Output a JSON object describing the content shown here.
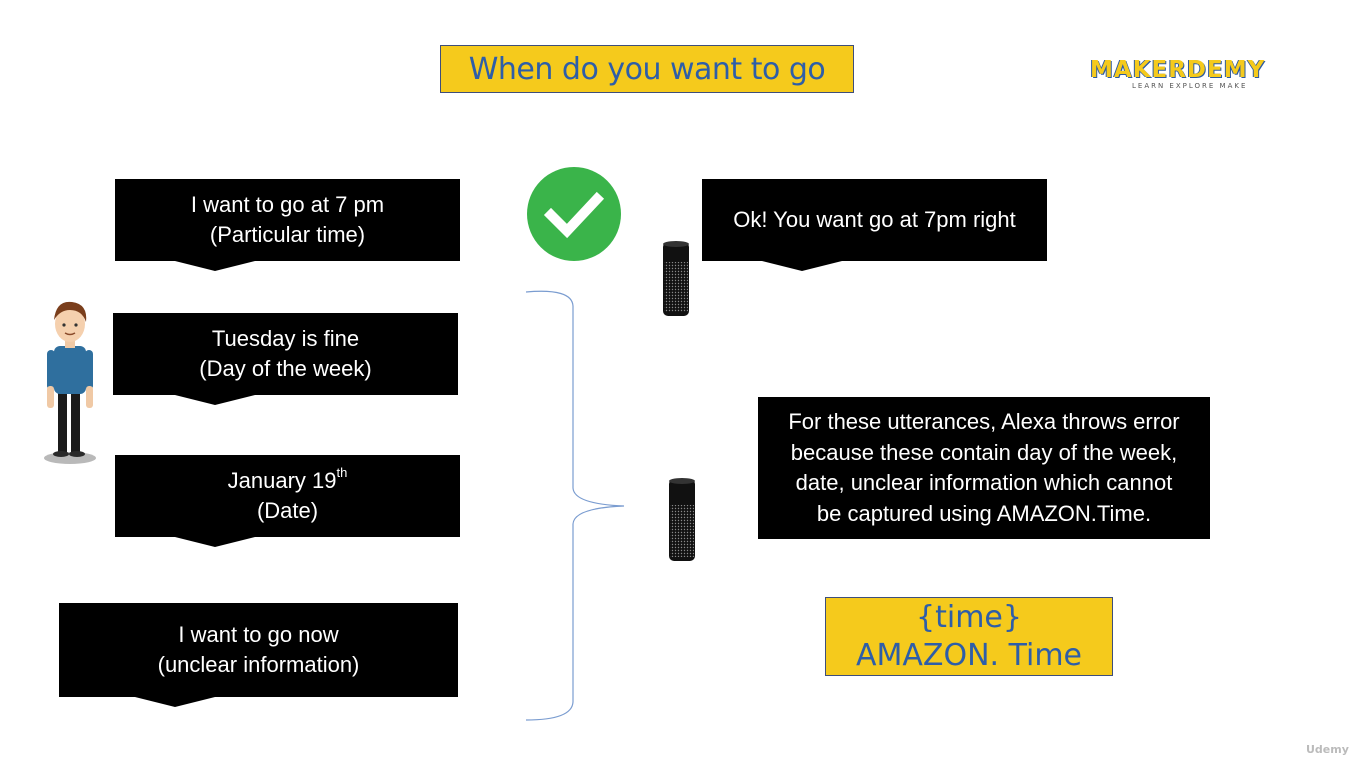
{
  "title": "When do you want to go",
  "logo": {
    "name": "MAKERDEMY",
    "tagline": "LEARN EXPLORE MAKE"
  },
  "utterances": [
    {
      "line1": "I want to go at 7 pm",
      "line2": "(Particular time)"
    },
    {
      "line1": "Tuesday is fine",
      "line2": "(Day of the week)"
    },
    {
      "line1": "January 19",
      "sup": "th",
      "line2": "(Date)"
    },
    {
      "line1": "I want to go now",
      "line2": "(unclear information)"
    }
  ],
  "alexa_response": "Ok! You want go at 7pm right",
  "error_note": {
    "lines": [
      "For these utterances, Alexa throws error",
      "because these contain day of the week,",
      "date, unclear information which cannot",
      "be captured using AMAZON.Time."
    ]
  },
  "slot": {
    "name": "{time}",
    "type": "AMAZON. Time"
  },
  "watermark": "Udemy",
  "colors": {
    "accent_yellow": "#f5ca1c",
    "accent_blue": "#2e5ea8",
    "check_green": "#3ab44a"
  }
}
